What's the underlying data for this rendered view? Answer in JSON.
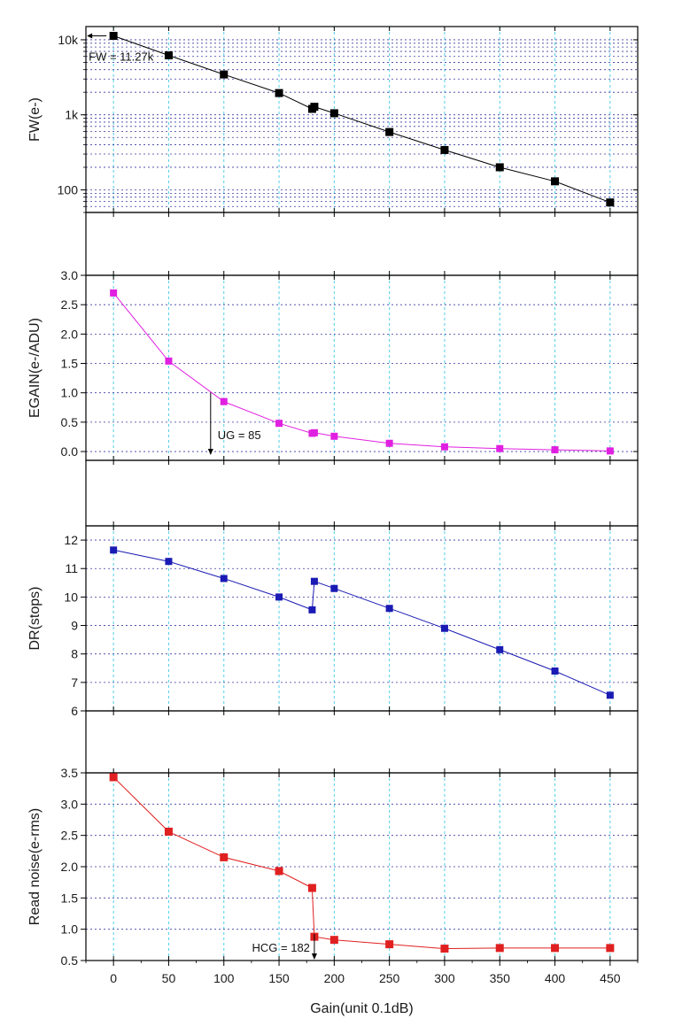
{
  "chart_data": [
    {
      "type": "line",
      "id": "fw",
      "ylabel": "FW(e-)",
      "yscale": "log",
      "ylim": [
        50,
        15000
      ],
      "yticks": [
        100,
        1000,
        10000
      ],
      "ytick_labels": [
        "100",
        "1k",
        "10k"
      ],
      "color": "#000000",
      "series": [
        {
          "name": "FW",
          "x": [
            0,
            50,
            100,
            150,
            180,
            182,
            200,
            250,
            300,
            350,
            400,
            450
          ],
          "y": [
            11270,
            6200,
            3450,
            1950,
            1200,
            1280,
            1050,
            590,
            340,
            200,
            130,
            68
          ]
        }
      ],
      "annotations": [
        {
          "text": "FW = 11.27k",
          "x": 0,
          "y": 11270
        }
      ]
    },
    {
      "type": "line",
      "id": "egain",
      "ylabel": "EGAIN(e-/ADU)",
      "yscale": "linear",
      "ylim": [
        -0.15,
        3.0
      ],
      "yticks": [
        0.0,
        0.5,
        1.0,
        1.5,
        2.0,
        2.5,
        3.0
      ],
      "ytick_labels": [
        "0.0",
        "0.5",
        "1.0",
        "1.5",
        "2.0",
        "2.5",
        "3.0"
      ],
      "color": "#e020e0",
      "series": [
        {
          "name": "EGAIN",
          "x": [
            0,
            50,
            100,
            150,
            180,
            182,
            200,
            250,
            300,
            350,
            400,
            450
          ],
          "y": [
            2.7,
            1.54,
            0.85,
            0.48,
            0.31,
            0.32,
            0.26,
            0.14,
            0.08,
            0.05,
            0.03,
            0.01
          ]
        }
      ],
      "annotations": [
        {
          "text": "UG = 85",
          "x": 88,
          "y": 1.0
        }
      ]
    },
    {
      "type": "line",
      "id": "dr",
      "ylabel": "DR(stops)",
      "yscale": "linear",
      "ylim": [
        6,
        12.5
      ],
      "yticks": [
        6,
        7,
        8,
        9,
        10,
        11,
        12
      ],
      "ytick_labels": [
        "6",
        "7",
        "8",
        "9",
        "10",
        "11",
        "12"
      ],
      "color": "#1a1ab4",
      "series": [
        {
          "name": "DR",
          "x": [
            0,
            50,
            100,
            150,
            180,
            182,
            200,
            250,
            300,
            350,
            400,
            450
          ],
          "y": [
            11.65,
            11.25,
            10.65,
            10.0,
            9.55,
            10.55,
            10.3,
            9.6,
            8.9,
            8.15,
            7.4,
            6.55
          ]
        }
      ]
    },
    {
      "type": "line",
      "id": "readnoise",
      "ylabel": "Read noise(e-rms)",
      "yscale": "linear",
      "ylim": [
        0.5,
        3.5
      ],
      "yticks": [
        0.5,
        1.0,
        1.5,
        2.0,
        2.5,
        3.0,
        3.5
      ],
      "ytick_labels": [
        "0.5",
        "1.0",
        "1.5",
        "2.0",
        "2.5",
        "3.0",
        "3.5"
      ],
      "color": "#e02020",
      "series": [
        {
          "name": "Read noise",
          "x": [
            0,
            50,
            100,
            150,
            180,
            182,
            200,
            250,
            300,
            350,
            400,
            450
          ],
          "y": [
            3.43,
            2.56,
            2.15,
            1.93,
            1.66,
            0.88,
            0.83,
            0.76,
            0.69,
            0.7,
            0.7,
            0.7
          ]
        }
      ],
      "annotations": [
        {
          "text": "HCG = 182",
          "x": 182,
          "y": 0.5
        }
      ]
    }
  ],
  "x_axis": {
    "xlabel": "Gain(unit 0.1dB)",
    "xlim": [
      -25,
      475
    ],
    "ticks": [
      0,
      50,
      100,
      150,
      200,
      250,
      300,
      350,
      400,
      450
    ],
    "tick_labels": [
      "0",
      "50",
      "100",
      "150",
      "200",
      "250",
      "300",
      "350",
      "400",
      "450"
    ]
  }
}
